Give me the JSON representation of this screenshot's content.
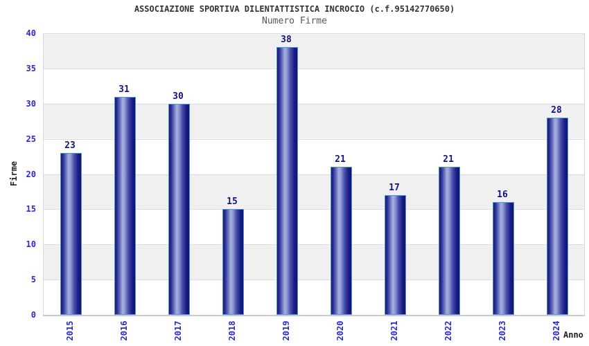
{
  "title": "ASSOCIAZIONE SPORTIVA DILENTATTISTICA INCROCIO (c.f.95142770650)",
  "subtitle": "Numero Firme",
  "colors": {
    "tick_label": "#2929cc",
    "value_label": "#14147d",
    "title_text": "#333333",
    "subtitle_text": "#55555f",
    "axis_title_text": "#222222",
    "bar_border": "#4f97dd",
    "bar_dark": "#181878",
    "bar_light": "#a9b2dc",
    "band_gray": "#f0f0f0",
    "gridline": "#dcdcdc",
    "axis_line": "#c9c9c9"
  },
  "chart_data": {
    "type": "bar",
    "title": "ASSOCIAZIONE SPORTIVA DILENTATTISTICA INCROCIO (c.f.95142770650)",
    "subtitle": "Numero Firme",
    "categories": [
      "2015",
      "2016",
      "2017",
      "2018",
      "2019",
      "2020",
      "2021",
      "2022",
      "2023",
      "2024"
    ],
    "values": [
      23,
      31,
      30,
      15,
      38,
      21,
      17,
      21,
      16,
      28
    ],
    "xlabel": "Anno",
    "ylabel": "Firme",
    "ylim": [
      0,
      40
    ],
    "yticks": [
      0,
      5,
      10,
      15,
      20,
      25,
      30,
      35,
      40
    ],
    "grid": true,
    "bands": "alternating gray/white every 5 units",
    "legend_position": "none",
    "x_tick_rotation": 90,
    "value_labels_shown": true
  }
}
